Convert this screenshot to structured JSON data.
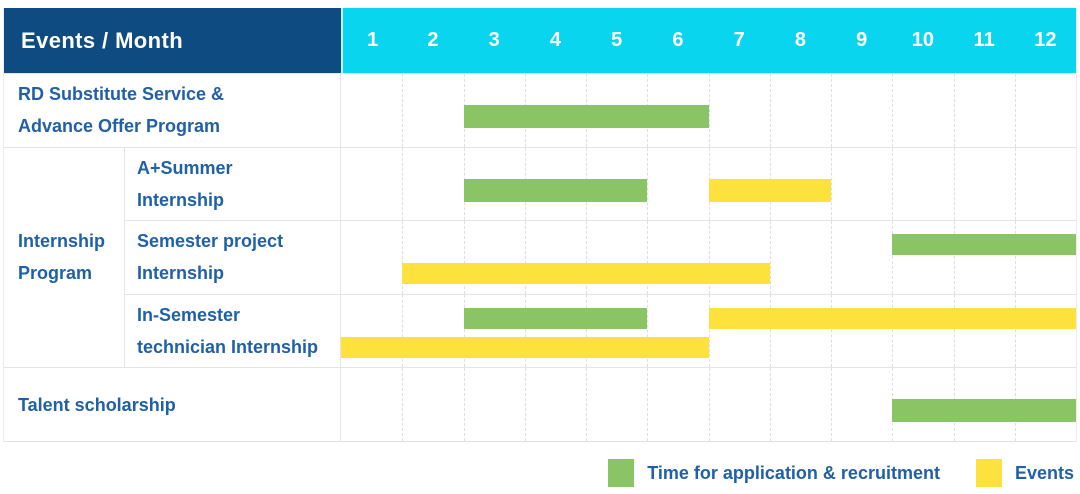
{
  "header": {
    "title": "Events / Month",
    "months": [
      "1",
      "2",
      "3",
      "4",
      "5",
      "6",
      "7",
      "8",
      "9",
      "10",
      "11",
      "12"
    ]
  },
  "colors": {
    "navy": "#0d4b80",
    "cyan": "#09d5ee",
    "green": "#8ac464",
    "yellow": "#fde13c",
    "label_blue": "#1f60a6"
  },
  "chart_data": {
    "type": "bar",
    "subtype": "gantt-schedule",
    "x_axis_label": "Month",
    "x_categories": [
      "1",
      "2",
      "3",
      "4",
      "5",
      "6",
      "7",
      "8",
      "9",
      "10",
      "11",
      "12"
    ],
    "legend": [
      {
        "name": "Time for application & recruitment",
        "color": "#8ac464"
      },
      {
        "name": "Events",
        "color": "#fde13c"
      }
    ],
    "rows": [
      {
        "label": "RD Substitute Service &\nAdvance Offer Program",
        "group": "",
        "bars": [
          {
            "series": "Time for application & recruitment",
            "color_key": "green",
            "start_month": 3,
            "end_month": 6,
            "lane": "single"
          }
        ]
      },
      {
        "label": "A+Summer\nInternship",
        "group": "Internship\nProgram",
        "bars": [
          {
            "series": "Time for application & recruitment",
            "color_key": "green",
            "start_month": 3,
            "end_month": 5,
            "lane": "single"
          },
          {
            "series": "Events",
            "color_key": "yellow",
            "start_month": 7,
            "end_month": 8,
            "lane": "single"
          }
        ]
      },
      {
        "label": "Semester project\nInternship",
        "group": "Internship\nProgram",
        "bars": [
          {
            "series": "Time for application & recruitment",
            "color_key": "green",
            "start_month": 10,
            "end_month": 12,
            "lane": "top"
          },
          {
            "series": "Events",
            "color_key": "yellow",
            "start_month": 2,
            "end_month": 7,
            "lane": "bottom"
          }
        ]
      },
      {
        "label": "In-Semester\ntechnician Internship",
        "group": "Internship\nProgram",
        "bars": [
          {
            "series": "Time for application & recruitment",
            "color_key": "green",
            "start_month": 3,
            "end_month": 5,
            "lane": "top"
          },
          {
            "series": "Events",
            "color_key": "yellow",
            "start_month": 7,
            "end_month": 12,
            "lane": "top"
          },
          {
            "series": "Events",
            "color_key": "yellow",
            "start_month": 1,
            "end_month": 6,
            "lane": "bottom"
          }
        ]
      },
      {
        "label": "Talent scholarship",
        "group": "",
        "bars": [
          {
            "series": "Time for application & recruitment",
            "color_key": "green",
            "start_month": 10,
            "end_month": 12,
            "lane": "single"
          }
        ]
      }
    ]
  },
  "legend": {
    "items": [
      {
        "label": "Time for application & recruitment",
        "color_key": "green"
      },
      {
        "label": "Events",
        "color_key": "yellow"
      }
    ]
  }
}
